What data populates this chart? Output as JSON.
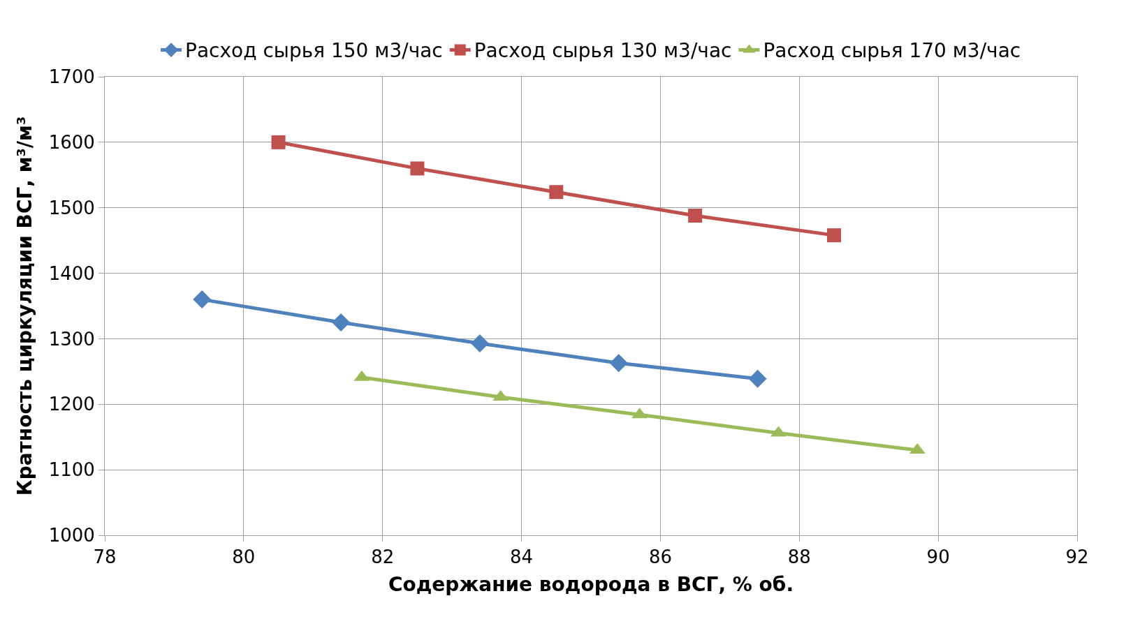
{
  "chart_data": {
    "type": "line",
    "xlabel": "Содержание водорода в ВСГ, % об.",
    "ylabel": "Кратность циркуляции ВСГ, м³/м³",
    "xlim": [
      78,
      92
    ],
    "xticks": [
      78,
      80,
      82,
      84,
      86,
      88,
      90,
      92
    ],
    "ylim": [
      1000,
      1700
    ],
    "yticks": [
      1000,
      1100,
      1200,
      1300,
      1400,
      1500,
      1600,
      1700
    ],
    "grid": true,
    "legend": "top",
    "line_style": "solid",
    "series": [
      {
        "name": "Расход сырья 150 м3/час",
        "color": "#4f81bd",
        "marker": "diamond",
        "x": [
          79.4,
          81.4,
          83.4,
          85.4,
          87.4
        ],
        "values": [
          1360,
          1325,
          1293,
          1263,
          1239
        ]
      },
      {
        "name": "Расход сырья 130 м3/час",
        "color": "#c0504d",
        "marker": "square",
        "x": [
          80.5,
          82.5,
          84.5,
          86.5,
          88.5
        ],
        "values": [
          1600,
          1560,
          1524,
          1488,
          1458
        ]
      },
      {
        "name": "Расход сырья 170 м3/час",
        "color": "#9bbb59",
        "marker": "triangle",
        "x": [
          81.7,
          83.7,
          85.7,
          87.7,
          89.7
        ],
        "values": [
          1241,
          1211,
          1184,
          1156,
          1130
        ]
      }
    ]
  }
}
